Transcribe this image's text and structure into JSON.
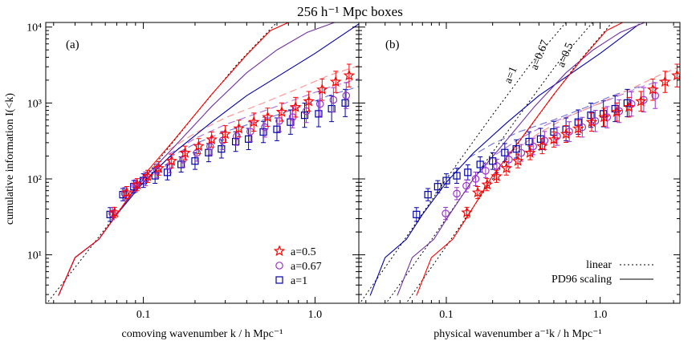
{
  "title": "256 h⁻¹ Mpc boxes",
  "ylabel": "cumulative information  I(<k)",
  "legend_markers": [
    {
      "label": "a=0.5",
      "color": "#ff0000",
      "marker": "star"
    },
    {
      "label": "a=0.67",
      "color": "#9932cc",
      "marker": "circle"
    },
    {
      "label": "a=1",
      "color": "#0000aa",
      "marker": "square"
    }
  ],
  "legend_lines": [
    {
      "label": "linear",
      "style": "dotted"
    },
    {
      "label": "PD96 scaling",
      "style": "solid"
    }
  ],
  "colors": {
    "a05": "#ff0000",
    "a067": "#9932cc",
    "a1": "#0000aa"
  },
  "chart_data": [
    {
      "type": "line",
      "panel_label": "(a)",
      "xlabel": "comoving wavenumber   k / h Mpc⁻¹",
      "ylabel": "cumulative information  I(<k)",
      "x_scale": "log",
      "y_scale": "log",
      "xlim": [
        0.027,
        1.8
      ],
      "ylim": [
        2.3,
        11500
      ],
      "xticks": [
        0.1,
        1.0
      ],
      "xtick_labels": [
        "0.1",
        "1.0"
      ],
      "yticks": [
        10,
        100,
        1000,
        10000
      ],
      "ytick_labels": [
        "10¹",
        "10²",
        "10³",
        "10⁴"
      ],
      "series": [
        {
          "name": "a=1",
          "kind": "points",
          "marker": "square",
          "color": "#0000aa",
          "x": [
            0.064,
            0.076,
            0.088,
            0.1,
            0.117,
            0.138,
            0.166,
            0.2,
            0.24,
            0.285,
            0.345,
            0.41,
            0.5,
            0.6,
            0.72,
            0.87,
            1.05,
            1.25,
            1.5
          ],
          "y": [
            34,
            62,
            79,
            95,
            110,
            122,
            155,
            172,
            222,
            248,
            310,
            335,
            415,
            450,
            560,
            690,
            720,
            840,
            1000
          ],
          "err": [
            0.09,
            0.08,
            0.08,
            0.09,
            0.1,
            0.1,
            0.1,
            0.11,
            0.12,
            0.12,
            0.13,
            0.14,
            0.14,
            0.15,
            0.16,
            0.16,
            0.17,
            0.17,
            0.18
          ]
        },
        {
          "name": "a=0.67",
          "kind": "points",
          "marker": "circle",
          "color": "#9932cc",
          "x": [
            0.066,
            0.078,
            0.09,
            0.103,
            0.12,
            0.142,
            0.17,
            0.205,
            0.245,
            0.29,
            0.35,
            0.42,
            0.51,
            0.62,
            0.74,
            0.89,
            1.07,
            1.28,
            1.52
          ],
          "y": [
            35,
            64,
            81,
            100,
            128,
            148,
            180,
            220,
            268,
            320,
            365,
            420,
            480,
            580,
            650,
            780,
            970,
            1100,
            1250
          ],
          "err": [
            0.08,
            0.08,
            0.08,
            0.09,
            0.09,
            0.09,
            0.1,
            0.11,
            0.11,
            0.12,
            0.12,
            0.13,
            0.13,
            0.14,
            0.14,
            0.15,
            0.16,
            0.16,
            0.17
          ]
        },
        {
          "name": "a=0.5",
          "kind": "points",
          "marker": "star",
          "color": "#ff0000",
          "x": [
            0.068,
            0.08,
            0.092,
            0.106,
            0.123,
            0.146,
            0.175,
            0.21,
            0.25,
            0.3,
            0.36,
            0.44,
            0.53,
            0.64,
            0.77,
            0.92,
            1.1,
            1.32,
            1.58
          ],
          "y": [
            36,
            66,
            84,
            108,
            138,
            172,
            220,
            270,
            330,
            390,
            460,
            560,
            650,
            760,
            880,
            1050,
            1500,
            1900,
            2300
          ],
          "err": [
            0.07,
            0.08,
            0.08,
            0.08,
            0.09,
            0.09,
            0.09,
            0.1,
            0.1,
            0.11,
            0.11,
            0.12,
            0.12,
            0.12,
            0.13,
            0.13,
            0.14,
            0.14,
            0.15
          ]
        },
        {
          "name": "a=1",
          "kind": "line",
          "style": "dashed",
          "color": "#7070dd",
          "x": [
            0.14,
            0.2,
            0.3,
            0.5,
            0.8,
            1.2,
            1.8
          ],
          "y": [
            190,
            290,
            420,
            600,
            870,
            1250,
            1650
          ]
        },
        {
          "name": "a=0.67",
          "kind": "line",
          "style": "dashed",
          "color": "#b070e0",
          "x": [
            0.14,
            0.2,
            0.3,
            0.5,
            0.8,
            1.2,
            1.8
          ],
          "y": [
            210,
            340,
            520,
            780,
            1150,
            1600,
            2100
          ]
        },
        {
          "name": "a=0.5",
          "kind": "line",
          "style": "dashed",
          "color": "#ff9090",
          "x": [
            0.14,
            0.2,
            0.3,
            0.5,
            0.8,
            1.2,
            1.8
          ],
          "y": [
            240,
            400,
            640,
            1000,
            1550,
            2300,
            3100
          ]
        },
        {
          "name": "linear",
          "kind": "line",
          "style": "dotted",
          "color": "#000000",
          "x": [
            0.027,
            0.05,
            0.1,
            0.2,
            0.35,
            0.65
          ],
          "y": [
            2.2,
            13,
            100,
            700,
            3200,
            14000
          ]
        },
        {
          "name": "a=1",
          "kind": "line",
          "style": "solid",
          "color": "#0000aa",
          "x": [
            0.032,
            0.04,
            0.055,
            0.07,
            0.1,
            0.15,
            0.25,
            0.4,
            0.6,
            1.0,
            1.8
          ],
          "y": [
            2.9,
            9.2,
            16,
            34,
            90,
            220,
            560,
            1250,
            2200,
            4500,
            11000
          ]
        },
        {
          "name": "a=0.67",
          "kind": "line",
          "style": "solid",
          "color": "#7030a0",
          "x": [
            0.032,
            0.04,
            0.055,
            0.07,
            0.1,
            0.15,
            0.25,
            0.4,
            0.6,
            0.9,
            1.3
          ],
          "y": [
            2.9,
            9.2,
            16,
            34,
            100,
            260,
            900,
            2500,
            5000,
            8500,
            11500
          ]
        },
        {
          "name": "a=0.5",
          "kind": "line",
          "style": "solid",
          "color": "#ff0000",
          "x": [
            0.032,
            0.04,
            0.055,
            0.07,
            0.1,
            0.15,
            0.25,
            0.4,
            0.55,
            0.7
          ],
          "y": [
            2.9,
            9.2,
            16,
            34,
            110,
            320,
            1300,
            4300,
            9000,
            11500
          ]
        }
      ]
    },
    {
      "type": "line",
      "panel_label": "(b)",
      "xlabel": "physical wavenumber   a⁻¹k / h Mpc⁻¹",
      "x_scale": "log",
      "y_scale": "log",
      "xlim": [
        0.027,
        3.3
      ],
      "ylim": [
        2.3,
        11500
      ],
      "xticks": [
        0.1,
        1.0
      ],
      "xtick_labels": [
        "0.1",
        "1.0"
      ],
      "line_annotations": [
        "a=1",
        "a=0.67",
        "a=0.5"
      ],
      "series": [
        {
          "name": "a=1",
          "kind": "points",
          "marker": "square",
          "color": "#0000aa",
          "x": [
            0.064,
            0.076,
            0.088,
            0.1,
            0.117,
            0.138,
            0.166,
            0.2,
            0.24,
            0.285,
            0.345,
            0.41,
            0.5,
            0.6,
            0.72,
            0.87,
            1.05,
            1.25,
            1.5
          ],
          "y": [
            34,
            62,
            79,
            95,
            110,
            122,
            155,
            172,
            222,
            248,
            310,
            335,
            415,
            450,
            560,
            690,
            720,
            840,
            1000
          ],
          "err": [
            0.09,
            0.08,
            0.08,
            0.09,
            0.1,
            0.1,
            0.1,
            0.11,
            0.12,
            0.12,
            0.13,
            0.14,
            0.14,
            0.15,
            0.16,
            0.16,
            0.17,
            0.17,
            0.18
          ]
        },
        {
          "name": "a=0.67",
          "kind": "points",
          "marker": "circle",
          "color": "#9932cc",
          "x": [
            0.099,
            0.117,
            0.135,
            0.155,
            0.18,
            0.213,
            0.255,
            0.307,
            0.367,
            0.435,
            0.525,
            0.63,
            0.765,
            0.93,
            1.11,
            1.33,
            1.6,
            1.92,
            2.28
          ],
          "y": [
            35,
            64,
            81,
            100,
            128,
            148,
            180,
            220,
            268,
            320,
            365,
            420,
            480,
            580,
            650,
            780,
            970,
            1100,
            1250
          ],
          "err": [
            0.08,
            0.08,
            0.08,
            0.09,
            0.09,
            0.09,
            0.1,
            0.11,
            0.11,
            0.12,
            0.12,
            0.13,
            0.13,
            0.14,
            0.14,
            0.15,
            0.16,
            0.16,
            0.17
          ]
        },
        {
          "name": "a=0.5",
          "kind": "points",
          "marker": "star",
          "color": "#ff0000",
          "x": [
            0.136,
            0.16,
            0.184,
            0.212,
            0.246,
            0.292,
            0.35,
            0.42,
            0.5,
            0.6,
            0.72,
            0.88,
            1.06,
            1.28,
            1.54,
            1.84,
            2.2,
            2.64,
            3.16
          ],
          "y": [
            36,
            66,
            84,
            108,
            138,
            172,
            220,
            270,
            330,
            390,
            460,
            560,
            650,
            760,
            880,
            1050,
            1500,
            1900,
            2300
          ],
          "err": [
            0.07,
            0.08,
            0.08,
            0.08,
            0.09,
            0.09,
            0.09,
            0.1,
            0.1,
            0.11,
            0.11,
            0.12,
            0.12,
            0.12,
            0.13,
            0.13,
            0.14,
            0.14,
            0.15
          ]
        },
        {
          "name": "a=1",
          "kind": "line",
          "style": "dashed",
          "color": "#7070dd",
          "x": [
            0.14,
            0.2,
            0.3,
            0.5,
            0.8,
            1.2,
            1.8
          ],
          "y": [
            190,
            290,
            420,
            600,
            870,
            1250,
            1650
          ]
        },
        {
          "name": "a=0.67",
          "kind": "line",
          "style": "dashed",
          "color": "#b070e0",
          "x": [
            0.21,
            0.3,
            0.45,
            0.75,
            1.2,
            1.8,
            2.7
          ],
          "y": [
            210,
            340,
            520,
            780,
            1150,
            1600,
            2100
          ]
        },
        {
          "name": "a=0.5",
          "kind": "line",
          "style": "dashed",
          "color": "#ff9090",
          "x": [
            0.28,
            0.4,
            0.6,
            1.0,
            1.6,
            2.4,
            3.3
          ],
          "y": [
            240,
            400,
            640,
            1000,
            1550,
            2300,
            3000
          ]
        },
        {
          "name": "a=1",
          "kind": "line",
          "style": "dotted",
          "color": "#000000",
          "x": [
            0.027,
            0.05,
            0.1,
            0.2,
            0.35,
            0.65
          ],
          "y": [
            2.2,
            13,
            100,
            700,
            3200,
            14000
          ]
        },
        {
          "name": "a=0.67",
          "kind": "line",
          "style": "dotted",
          "color": "#000000",
          "x": [
            0.04,
            0.075,
            0.15,
            0.3,
            0.52,
            0.97
          ],
          "y": [
            2.2,
            13,
            100,
            700,
            3200,
            14000
          ]
        },
        {
          "name": "a=0.5",
          "kind": "line",
          "style": "dotted",
          "color": "#000000",
          "x": [
            0.054,
            0.1,
            0.2,
            0.4,
            0.7,
            1.3
          ],
          "y": [
            2.2,
            13,
            100,
            700,
            3200,
            14000
          ]
        },
        {
          "name": "a=1",
          "kind": "line",
          "style": "solid",
          "color": "#0000aa",
          "x": [
            0.032,
            0.04,
            0.055,
            0.07,
            0.1,
            0.15,
            0.25,
            0.4,
            0.6,
            1.0,
            1.8
          ],
          "y": [
            2.9,
            9.2,
            16,
            34,
            90,
            220,
            560,
            1250,
            2200,
            4500,
            11000
          ]
        },
        {
          "name": "a=0.67",
          "kind": "line",
          "style": "solid",
          "color": "#7030a0",
          "x": [
            0.048,
            0.06,
            0.083,
            0.105,
            0.15,
            0.225,
            0.375,
            0.6,
            0.9,
            1.35,
            1.95
          ],
          "y": [
            2.9,
            9.2,
            16,
            34,
            100,
            260,
            900,
            2500,
            5000,
            8500,
            11500
          ]
        },
        {
          "name": "a=0.5",
          "kind": "line",
          "style": "solid",
          "color": "#ff0000",
          "x": [
            0.064,
            0.08,
            0.11,
            0.14,
            0.2,
            0.3,
            0.5,
            0.8,
            1.1,
            1.4
          ],
          "y": [
            2.9,
            9.2,
            16,
            34,
            110,
            320,
            1300,
            4300,
            9000,
            11500
          ]
        }
      ]
    }
  ]
}
